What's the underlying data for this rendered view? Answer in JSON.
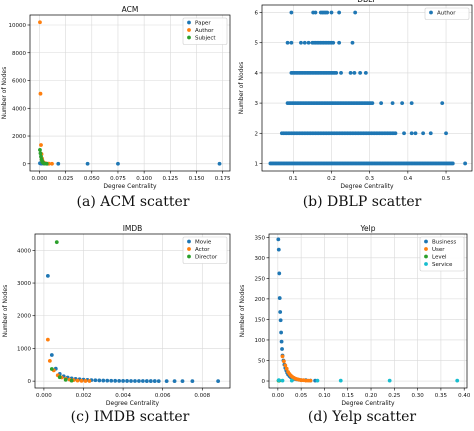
{
  "colors": {
    "paper": "#1f77b4",
    "author": "#ff7f0e",
    "subject": "#2ca02c",
    "movie": "#1f77b4",
    "actor": "#ff7f0e",
    "director": "#2ca02c",
    "business": "#1f77b4",
    "user": "#ff7f0e",
    "level": "#2ca02c",
    "service": "#17becf",
    "grid": "#d9d9d9",
    "axis": "#000000"
  },
  "captions": [
    "(a)  ACM scatter",
    "(b)  DBLP scatter",
    "(c)  IMDB scatter",
    "(d)  Yelp scatter"
  ],
  "chart_data": [
    {
      "type": "scatter",
      "title": "ACM",
      "xlabel": "Degree Centrality",
      "ylabel": "Number of Nodes",
      "xlim": [
        -0.009,
        0.182
      ],
      "ylim": [
        -520,
        10720
      ],
      "xticks": [
        0.0,
        0.025,
        0.05,
        0.075,
        0.1,
        0.125,
        0.15,
        0.175
      ],
      "xtick_labels": [
        "0.000",
        "0.025",
        "0.050",
        "0.075",
        "0.100",
        "0.125",
        "0.150",
        "0.175"
      ],
      "yticks": [
        0,
        2000,
        4000,
        6000,
        8000,
        10000
      ],
      "ytick_labels": [
        "0",
        "2000",
        "4000",
        "6000",
        "8000",
        "10000"
      ],
      "grid": true,
      "legend_position": "top-right",
      "series": [
        {
          "name": "Paper",
          "color_key": "paper",
          "points": [
            [
              0.0005,
              40
            ],
            [
              0.001,
              25
            ],
            [
              0.002,
              15
            ],
            [
              0.004,
              10
            ],
            [
              0.008,
              5
            ],
            [
              0.018,
              2
            ],
            [
              0.046,
              2
            ],
            [
              0.075,
              1
            ],
            [
              0.172,
              1
            ]
          ]
        },
        {
          "name": "Author",
          "color_key": "author",
          "points": [
            [
              0.0005,
              10200
            ],
            [
              0.001,
              5050
            ],
            [
              0.0015,
              1350
            ],
            [
              0.002,
              700
            ],
            [
              0.0025,
              380
            ],
            [
              0.003,
              220
            ],
            [
              0.0035,
              130
            ],
            [
              0.004,
              80
            ],
            [
              0.005,
              45
            ],
            [
              0.006,
              25
            ],
            [
              0.007,
              12
            ],
            [
              0.009,
              6
            ],
            [
              0.012,
              3
            ]
          ]
        },
        {
          "name": "Subject",
          "color_key": "subject",
          "points": [
            [
              0.0005,
              1000
            ],
            [
              0.001,
              760
            ],
            [
              0.0015,
              520
            ],
            [
              0.002,
              320
            ],
            [
              0.0025,
              200
            ],
            [
              0.003,
              110
            ],
            [
              0.004,
              45
            ],
            [
              0.005,
              15
            ],
            [
              0.007,
              5
            ]
          ]
        }
      ]
    },
    {
      "type": "scatter",
      "title": "DBLP",
      "xlabel": "Degree Centrality",
      "ylabel": "Number of Nodes",
      "xlim": [
        0.018,
        0.568
      ],
      "ylim": [
        0.75,
        6.25
      ],
      "xticks": [
        0.1,
        0.2,
        0.3,
        0.4,
        0.5
      ],
      "xtick_labels": [
        "0.1",
        "0.2",
        "0.3",
        "0.4",
        "0.5"
      ],
      "yticks": [
        1,
        2,
        3,
        4,
        5,
        6
      ],
      "ytick_labels": [
        "1",
        "2",
        "3",
        "4",
        "5",
        "6"
      ],
      "grid": true,
      "legend_position": "top-right",
      "series": [
        {
          "name": "Author",
          "color_key": "paper",
          "bands": [
            {
              "y": 1,
              "ranges": [
                [
                  0.04,
                  0.52
                ]
              ],
              "extra": [
                0.55
              ]
            },
            {
              "y": 2,
              "ranges": [
                [
                  0.07,
                  0.37
                ]
              ],
              "extra": [
                0.39,
                0.41,
                0.42,
                0.44,
                0.46,
                0.5
              ]
            },
            {
              "y": 3,
              "ranges": [
                [
                  0.085,
                  0.31
                ]
              ],
              "extra": [
                0.33,
                0.36,
                0.385,
                0.41,
                0.49
              ]
            },
            {
              "y": 4,
              "ranges": [
                [
                  0.095,
                  0.215
                ]
              ],
              "extra": [
                0.225,
                0.25,
                0.26,
                0.275,
                0.29
              ]
            },
            {
              "y": 5,
              "ranges": [
                [
                  0.15,
                  0.205
                ]
              ],
              "extra": [
                0.085,
                0.095,
                0.12,
                0.13,
                0.14,
                0.22,
                0.255
              ]
            },
            {
              "y": 6,
              "ranges": [
                [
                  0.172,
                  0.19
                ]
              ],
              "extra": [
                0.095,
                0.152,
                0.158,
                0.2,
                0.22,
                0.262
              ]
            }
          ]
        }
      ]
    },
    {
      "type": "scatter",
      "title": "IMDB",
      "xlabel": "Degree Centrality",
      "ylabel": "Number of Nodes",
      "xlim": [
        -0.00045,
        0.0094
      ],
      "ylim": [
        -210,
        4500
      ],
      "xticks": [
        0.0,
        0.002,
        0.004,
        0.006,
        0.008
      ],
      "xtick_labels": [
        "0.000",
        "0.002",
        "0.004",
        "0.006",
        "0.008"
      ],
      "yticks": [
        0,
        1000,
        2000,
        3000,
        4000
      ],
      "ytick_labels": [
        "0",
        "1000",
        "2000",
        "3000",
        "4000"
      ],
      "grid": true,
      "legend_position": "top-right",
      "series": [
        {
          "name": "Movie",
          "color_key": "movie",
          "points": [
            [
              0.0002,
              3220
            ],
            [
              0.0004,
              800
            ],
            [
              0.0006,
              380
            ],
            [
              0.0008,
              220
            ],
            [
              0.001,
              150
            ],
            [
              0.0012,
              110
            ],
            [
              0.0014,
              85
            ],
            [
              0.0016,
              70
            ],
            [
              0.0018,
              55
            ],
            [
              0.002,
              45
            ],
            [
              0.0022,
              38
            ],
            [
              0.0024,
              30
            ],
            [
              0.0026,
              26
            ],
            [
              0.0028,
              22
            ],
            [
              0.003,
              18
            ],
            [
              0.0032,
              15
            ],
            [
              0.0034,
              12
            ],
            [
              0.0036,
              10
            ],
            [
              0.0038,
              8
            ],
            [
              0.004,
              7
            ],
            [
              0.0042,
              6
            ],
            [
              0.0044,
              5
            ],
            [
              0.0046,
              4
            ],
            [
              0.0048,
              3
            ],
            [
              0.005,
              3
            ],
            [
              0.0052,
              2
            ],
            [
              0.0054,
              2
            ],
            [
              0.0056,
              2
            ],
            [
              0.0058,
              1
            ],
            [
              0.0062,
              1
            ],
            [
              0.0066,
              1
            ],
            [
              0.007,
              1
            ],
            [
              0.0075,
              1
            ],
            [
              0.0088,
              1
            ]
          ]
        },
        {
          "name": "Actor",
          "color_key": "actor",
          "points": [
            [
              0.0002,
              1270
            ],
            [
              0.0003,
              620
            ],
            [
              0.0005,
              330
            ],
            [
              0.0007,
              180
            ],
            [
              0.0009,
              110
            ],
            [
              0.0011,
              70
            ],
            [
              0.0013,
              45
            ],
            [
              0.0015,
              30
            ],
            [
              0.0017,
              18
            ],
            [
              0.0019,
              10
            ],
            [
              0.0021,
              6
            ],
            [
              0.0023,
              3
            ]
          ]
        },
        {
          "name": "Director",
          "color_key": "director",
          "points": [
            [
              0.00065,
              4250
            ],
            [
              0.0004,
              370
            ],
            [
              0.0008,
              120
            ],
            [
              0.0011,
              40
            ],
            [
              0.0014,
              15
            ]
          ]
        }
      ]
    },
    {
      "type": "scatter",
      "title": "Yelp",
      "xlabel": "Degree Centrality",
      "ylabel": "Number of Nodes",
      "xlim": [
        -0.019,
        0.406
      ],
      "ylim": [
        -17,
        358
      ],
      "xticks": [
        0.0,
        0.05,
        0.1,
        0.15,
        0.2,
        0.25,
        0.3,
        0.35,
        0.4
      ],
      "xtick_labels": [
        "0.00",
        "0.05",
        "0.10",
        "0.15",
        "0.20",
        "0.25",
        "0.30",
        "0.35",
        "0.40"
      ],
      "yticks": [
        0,
        50,
        100,
        150,
        200,
        250,
        300,
        350
      ],
      "ytick_labels": [
        "0",
        "50",
        "100",
        "150",
        "200",
        "250",
        "300",
        "350"
      ],
      "grid": true,
      "legend_position": "top-right",
      "series": [
        {
          "name": "Business",
          "color_key": "business",
          "points": [
            [
              0.001,
              345
            ],
            [
              0.002,
              320
            ],
            [
              0.003,
              262
            ],
            [
              0.004,
              202
            ],
            [
              0.005,
              168
            ],
            [
              0.006,
              148
            ],
            [
              0.007,
              118
            ],
            [
              0.008,
              96
            ],
            [
              0.009,
              78
            ],
            [
              0.01,
              62
            ],
            [
              0.012,
              50
            ],
            [
              0.014,
              40
            ],
            [
              0.016,
              32
            ],
            [
              0.018,
              26
            ],
            [
              0.02,
              20
            ],
            [
              0.022,
              16
            ],
            [
              0.025,
              12
            ],
            [
              0.028,
              9
            ],
            [
              0.031,
              7
            ],
            [
              0.035,
              5
            ],
            [
              0.04,
              4
            ],
            [
              0.045,
              3
            ],
            [
              0.05,
              2
            ],
            [
              0.06,
              2
            ],
            [
              0.07,
              1
            ],
            [
              0.08,
              1
            ]
          ]
        },
        {
          "name": "User",
          "color_key": "user",
          "points": [
            [
              0.01,
              60
            ],
            [
              0.013,
              48
            ],
            [
              0.016,
              38
            ],
            [
              0.019,
              30
            ],
            [
              0.022,
              22
            ],
            [
              0.025,
              17
            ],
            [
              0.028,
              13
            ],
            [
              0.031,
              10
            ],
            [
              0.034,
              8
            ],
            [
              0.037,
              6
            ],
            [
              0.04,
              5
            ],
            [
              0.043,
              4
            ],
            [
              0.046,
              3
            ],
            [
              0.05,
              2
            ],
            [
              0.055,
              2
            ],
            [
              0.06,
              1
            ],
            [
              0.065,
              1
            ],
            [
              0.07,
              1
            ]
          ]
        },
        {
          "name": "Level",
          "color_key": "level",
          "points": [
            [
              0.0015,
              1
            ],
            [
              0.003,
              1
            ]
          ]
        },
        {
          "name": "Service",
          "color_key": "service",
          "points": [
            [
              0.002,
              2
            ],
            [
              0.01,
              1
            ],
            [
              0.03,
              1
            ],
            [
              0.085,
              1
            ],
            [
              0.135,
              1
            ],
            [
              0.24,
              1
            ],
            [
              0.385,
              1
            ]
          ]
        }
      ]
    }
  ]
}
